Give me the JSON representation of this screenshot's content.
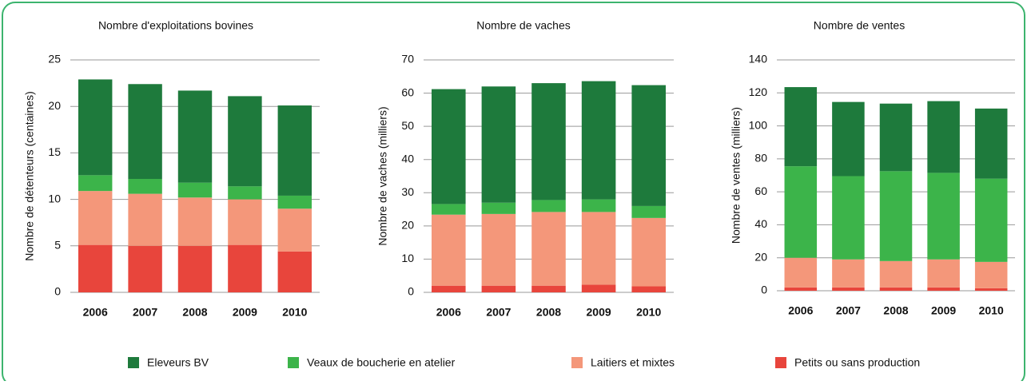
{
  "chart_data": [
    {
      "type": "stacked_bar",
      "title": "Nombre d'exploitations bovines",
      "ylabel": "Nombre de détenteurs (centaines)",
      "categories": [
        "2006",
        "2007",
        "2008",
        "2009",
        "2010"
      ],
      "ylim": [
        0,
        25
      ],
      "yticks": [
        0,
        5,
        10,
        15,
        20,
        25
      ],
      "grid": true,
      "series": [
        {
          "name": "Petits ou sans production",
          "color": "#e8453c",
          "values": [
            5.1,
            5.0,
            5.0,
            5.1,
            4.4
          ]
        },
        {
          "name": "Laitiers et mixtes",
          "color": "#f4977a",
          "values": [
            5.8,
            5.6,
            5.2,
            4.9,
            4.6
          ]
        },
        {
          "name": "Veaux de boucherie en atelier",
          "color": "#3cb44a",
          "values": [
            1.7,
            1.6,
            1.6,
            1.4,
            1.4
          ]
        },
        {
          "name": "Eleveurs BV",
          "color": "#1e7a3c",
          "values": [
            10.3,
            10.2,
            9.9,
            9.7,
            9.7
          ]
        }
      ]
    },
    {
      "type": "stacked_bar",
      "title": "Nombre de vaches",
      "ylabel": "Nombre de vaches  (milliers)",
      "categories": [
        "2006",
        "2007",
        "2008",
        "2009",
        "2010"
      ],
      "ylim": [
        0,
        70
      ],
      "yticks": [
        0,
        10,
        20,
        30,
        40,
        50,
        60,
        70
      ],
      "grid": true,
      "series": [
        {
          "values": [
            2.0,
            2.0,
            2.0,
            2.3,
            1.8
          ]
        },
        {
          "values": [
            21.4,
            21.6,
            22.2,
            21.9,
            20.6
          ]
        },
        {
          "values": [
            3.2,
            3.4,
            3.6,
            3.8,
            3.6
          ]
        },
        {
          "values": [
            34.6,
            35.0,
            35.2,
            35.6,
            36.4
          ]
        }
      ]
    },
    {
      "type": "stacked_bar",
      "title": "Nombre de ventes",
      "ylabel": "Nombre de ventes (milliers)",
      "categories": [
        "2006",
        "2007",
        "2008",
        "2009",
        "2010"
      ],
      "ylim": [
        0,
        140
      ],
      "yticks": [
        0,
        20,
        40,
        60,
        80,
        100,
        120,
        140
      ],
      "grid": true,
      "series": [
        {
          "values": [
            2,
            2,
            2,
            2,
            1.5
          ]
        },
        {
          "values": [
            18,
            17,
            16,
            17,
            16
          ]
        },
        {
          "values": [
            55.5,
            50.5,
            54.5,
            52.5,
            50.5
          ]
        },
        {
          "values": [
            48,
            45,
            41,
            43.5,
            42.5
          ]
        }
      ]
    }
  ],
  "legend_order": [
    3,
    2,
    1,
    0
  ]
}
